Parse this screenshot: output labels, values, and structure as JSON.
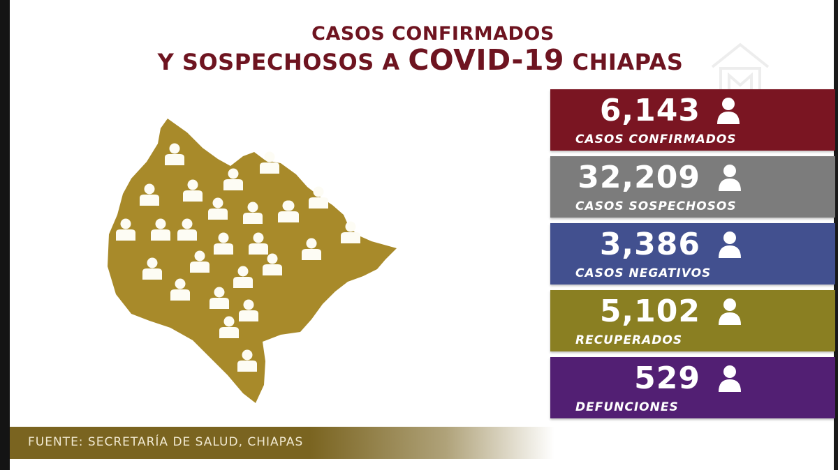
{
  "title": {
    "line1": "CASOS CONFIRMADOS",
    "line2_prefix": "Y SOSPECHOSOS A ",
    "line2_emphasis": "COVID-19",
    "line2_suffix": " CHIAPAS"
  },
  "colors": {
    "title": "#6e1420",
    "map_fill": "#a88a2a",
    "confirmados": "#7a1522",
    "sospechosos": "#7c7c7c",
    "negativos": "#42508f",
    "recuperados": "#8a7f22",
    "defunciones": "#521f73",
    "footer": "#7a6420"
  },
  "stats": [
    {
      "value": "6,143",
      "label": "CASOS CONFIRMADOS",
      "icon": "person-icon"
    },
    {
      "value": "32,209",
      "label": "CASOS SOSPECHOSOS",
      "icon": "person-icon"
    },
    {
      "value": "3,386",
      "label": "CASOS NEGATIVOS",
      "icon": "person-icon"
    },
    {
      "value": "5,102",
      "label": "RECUPERADOS",
      "icon": "person-icon"
    },
    {
      "value": "529",
      "label": "DEFUNCIONES",
      "icon": "person-icon"
    }
  ],
  "map": {
    "region": "Chiapas",
    "icon": "person-icon"
  },
  "footer": {
    "source": "FUENTE: SECRETARÍA DE SALUD, CHIAPAS"
  }
}
